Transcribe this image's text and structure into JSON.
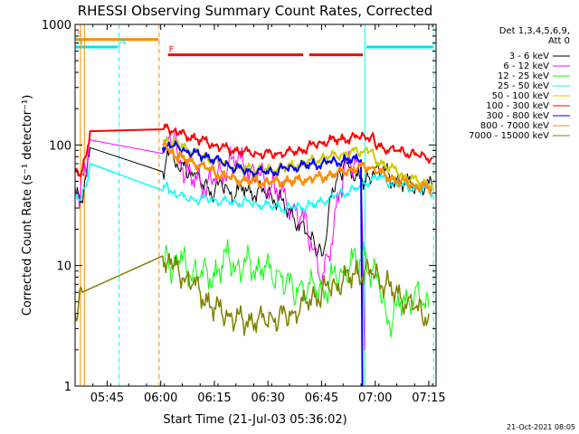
{
  "chart_data": {
    "type": "line",
    "title": "RHESSI Observing Summary Count Rates, Corrected",
    "xlabel": "Start Time (21-Jul-03 05:36:02)",
    "ylabel": "Corrected Count Rate (s⁻¹ detector⁻¹)",
    "y_scale": "log",
    "ylim": [
      1,
      1000
    ],
    "x_unit": "minutes since 05:36:02",
    "xlim": [
      0,
      101
    ],
    "x_ticks": [
      {
        "label": "05:45",
        "x": 8.97
      },
      {
        "label": "06:00",
        "x": 23.97
      },
      {
        "label": "06:15",
        "x": 38.97
      },
      {
        "label": "06:30",
        "x": 53.97
      },
      {
        "label": "06:45",
        "x": 68.97
      },
      {
        "label": "07:00",
        "x": 83.97
      },
      {
        "label": "07:15",
        "x": 98.97
      }
    ],
    "y_ticks": [
      {
        "label": "1",
        "y": 1
      },
      {
        "label": "10",
        "y": 10
      },
      {
        "label": "100",
        "y": 100
      },
      {
        "label": "1000",
        "y": 1000
      }
    ],
    "legend_header": [
      "Det 1,3,4,5,6,9,",
      "Att 0"
    ],
    "legend_placement": "right",
    "series": [
      {
        "name": "3 - 6 keV",
        "color": "#000000",
        "x": [
          0,
          1.5,
          3,
          4.2,
          24.5,
          25.5,
          26.5,
          27.5,
          28.5,
          29.5,
          31,
          33,
          34,
          35,
          37,
          39,
          41,
          43,
          45,
          47,
          49,
          51,
          53,
          55,
          57,
          59,
          61,
          63,
          65,
          67,
          68,
          69,
          70,
          71,
          73,
          74,
          75,
          76,
          77,
          79,
          81,
          82,
          84,
          86,
          88,
          90,
          92,
          94,
          96,
          98,
          100
        ],
        "y": [
          40,
          33,
          55,
          95,
          60,
          75,
          90,
          80,
          70,
          60,
          65,
          55,
          58,
          50,
          45,
          40,
          48,
          42,
          38,
          45,
          40,
          42,
          40,
          38,
          35,
          30,
          25,
          22,
          18,
          15,
          13,
          12,
          15,
          30,
          50,
          60,
          65,
          70,
          65,
          55,
          50,
          55,
          65,
          60,
          55,
          50,
          48,
          47,
          46,
          45,
          45
        ]
      },
      {
        "name": "6 - 12 keV",
        "color": "#ff00ff",
        "x": [
          0,
          1.5,
          3,
          4.2,
          24.5,
          25.5,
          26.5,
          27.5,
          28.5,
          29.5,
          31,
          33,
          35,
          37,
          39,
          41,
          43,
          45,
          47,
          49,
          51,
          53,
          55,
          57,
          59,
          61,
          63,
          65,
          67,
          69,
          71,
          73,
          75,
          77,
          79,
          80,
          81
        ],
        "y": [
          45,
          40,
          60,
          110,
          85,
          100,
          120,
          110,
          90,
          75,
          60,
          52,
          50,
          48,
          50,
          60,
          70,
          75,
          70,
          60,
          55,
          50,
          45,
          40,
          35,
          30,
          25,
          20,
          14,
          7,
          12,
          30,
          55,
          70,
          80,
          60,
          2
        ]
      },
      {
        "name": "12 - 25 keV",
        "color": "#00ff00",
        "x": [
          24.5,
          26,
          27.5,
          29,
          31,
          33,
          35,
          37,
          39,
          41,
          43,
          45,
          47,
          49,
          51,
          53,
          55,
          57,
          59,
          61,
          63,
          65,
          67,
          69,
          71,
          73,
          75,
          77,
          79,
          81,
          83,
          85,
          87,
          89,
          91,
          93,
          95,
          97,
          99
        ],
        "y": [
          10,
          12,
          9,
          11,
          10,
          9,
          8,
          9,
          8,
          10,
          12,
          10,
          9,
          11,
          9,
          10,
          8,
          9,
          7,
          6,
          7,
          6,
          7,
          6,
          7,
          8,
          9,
          10,
          11,
          12,
          9,
          7,
          4,
          3.5,
          5,
          5,
          6,
          5,
          4.5
        ]
      },
      {
        "name": "25 - 50 keV",
        "color": "#00ffff",
        "x": [
          0,
          1.5,
          3,
          4.2,
          24.5,
          26,
          27.5,
          29,
          31,
          33,
          35,
          37,
          39,
          41,
          43,
          45,
          47,
          49,
          51,
          53,
          55,
          57,
          59,
          61,
          63,
          65,
          67,
          69,
          71,
          73,
          75,
          77,
          79,
          81,
          83,
          85,
          87,
          89,
          91,
          93,
          95,
          97,
          99,
          100
        ],
        "y": [
          38,
          35,
          45,
          70,
          42,
          45,
          40,
          38,
          36,
          36,
          35,
          36,
          35,
          34,
          34,
          33,
          34,
          33,
          32,
          32,
          31,
          31,
          30,
          30,
          31,
          31,
          32,
          34,
          36,
          38,
          40,
          42,
          44,
          48,
          52,
          55,
          50,
          48,
          46,
          45,
          44,
          43,
          42,
          40
        ]
      },
      {
        "name": "50 - 100 keV",
        "color": "#cccc00",
        "x": [
          24.5,
          26,
          27.5,
          29,
          31,
          33,
          35,
          37,
          39,
          41,
          43,
          45,
          47,
          49,
          51,
          53,
          55,
          57,
          59,
          61,
          63,
          65,
          67,
          69,
          71,
          73,
          75,
          77,
          79,
          81,
          83,
          84,
          86,
          88,
          90,
          92,
          94,
          96,
          98,
          100
        ],
        "y": [
          110,
          108,
          105,
          100,
          95,
          88,
          82,
          78,
          74,
          70,
          68,
          66,
          64,
          63,
          63,
          62,
          63,
          64,
          65,
          67,
          70,
          72,
          75,
          78,
          80,
          82,
          84,
          86,
          88,
          90,
          92,
          75,
          70,
          65,
          60,
          56,
          52,
          50,
          48,
          47
        ]
      },
      {
        "name": "100 - 300 keV",
        "color": "#ff0000",
        "x": [
          0,
          1.5,
          3,
          4.2,
          24.5,
          26,
          27.5,
          29,
          31,
          33,
          35,
          37,
          39,
          41,
          43,
          45,
          47,
          49,
          51,
          53,
          55,
          57,
          59,
          61,
          63,
          65,
          67,
          69,
          71,
          73,
          75,
          77,
          79,
          81,
          83,
          84,
          86,
          88,
          90,
          92,
          94,
          96,
          98,
          100
        ],
        "y": [
          60,
          55,
          80,
          130,
          135,
          140,
          130,
          125,
          120,
          115,
          110,
          105,
          100,
          95,
          92,
          90,
          88,
          86,
          85,
          84,
          84,
          85,
          86,
          88,
          90,
          95,
          100,
          105,
          108,
          110,
          112,
          114,
          116,
          118,
          120,
          100,
          95,
          92,
          90,
          88,
          85,
          82,
          80,
          78
        ]
      },
      {
        "name": "300 - 800 keV",
        "color": "#0000ff",
        "x": [
          24.5,
          26,
          27.5,
          29,
          31,
          33,
          35,
          37,
          39,
          41,
          43,
          45,
          47,
          49,
          51,
          53,
          55,
          57,
          59,
          61,
          63,
          65,
          67,
          69,
          71,
          73,
          75,
          77,
          79,
          80,
          80.4
        ],
        "y": [
          95,
          100,
          98,
          95,
          90,
          85,
          82,
          80,
          76,
          72,
          68,
          64,
          62,
          60,
          60,
          60,
          60,
          62,
          64,
          65,
          67,
          68,
          69,
          70,
          72,
          73,
          74,
          75,
          76,
          75,
          1
        ]
      },
      {
        "name": "800 - 7000 keV",
        "color": "#ff8c00",
        "x": [
          24.5,
          26,
          27.5,
          29,
          31,
          33,
          35,
          37,
          39,
          41,
          43,
          45,
          47,
          49,
          51,
          53,
          55,
          57,
          59,
          61,
          63,
          65,
          67,
          69,
          71,
          73,
          75,
          77,
          79,
          81,
          83,
          85,
          87,
          89,
          91,
          93,
          95,
          97,
          99,
          100
        ],
        "y": [
          100,
          92,
          85,
          80,
          75,
          72,
          68,
          64,
          60,
          56,
          54,
          52,
          51,
          50,
          50,
          49,
          49,
          50,
          50,
          50,
          51,
          52,
          53,
          54,
          56,
          58,
          60,
          62,
          64,
          66,
          65,
          60,
          55,
          52,
          50,
          48,
          46,
          45,
          44,
          43
        ]
      },
      {
        "name": "7000 - 15000 keV",
        "color": "#808000",
        "x": [
          0,
          1,
          2,
          24.5,
          26,
          27.5,
          29,
          31,
          33,
          35,
          37,
          39,
          41,
          43,
          45,
          47,
          49,
          51,
          53,
          55,
          57,
          59,
          61,
          63,
          65,
          67,
          69,
          71,
          73,
          75,
          77,
          79,
          81,
          83,
          85,
          87,
          89,
          91,
          93,
          95,
          97,
          99
        ],
        "y": [
          4,
          5,
          6,
          12,
          11,
          10,
          9,
          8,
          7,
          6,
          5,
          4.5,
          4,
          4,
          3.5,
          3.5,
          3.5,
          3.5,
          3.5,
          3.8,
          3.6,
          3.8,
          4,
          4.5,
          5,
          5.5,
          6,
          6.5,
          7,
          7.5,
          8,
          8.5,
          9,
          8.5,
          8,
          7,
          6,
          5.5,
          5,
          4.5,
          4,
          4
        ]
      }
    ],
    "flags": [
      {
        "label": "S",
        "color": "#ff8c00",
        "x0": 0.2,
        "x1": 23.3,
        "y": 750
      },
      {
        "label": "N",
        "color": "#00e5ee",
        "x0": 0.2,
        "x1": 12.0,
        "y": 650
      },
      {
        "label": "N",
        "color": "#00e5ee",
        "x0": 12.3,
        "x1": 12.6,
        "y": 650
      },
      {
        "label": "",
        "color": "#00e5ee",
        "x0": 81.5,
        "x1": 100.3,
        "y": 650
      },
      {
        "label": "F",
        "color": "#ff0000",
        "x0": 26.0,
        "x1": 63.8,
        "y": 560
      },
      {
        "label": "",
        "color": "#ff0000",
        "x0": 65.5,
        "x1": 80.5,
        "y": 560
      }
    ],
    "vlines": [
      {
        "x": 1.5,
        "color": "#ff8c00",
        "style": "solid"
      },
      {
        "x": 2.6,
        "color": "#ff8c00",
        "style": "solid"
      },
      {
        "x": 12.3,
        "color": "#00ffff",
        "style": "dashed"
      },
      {
        "x": 23.5,
        "color": "#ff8c00",
        "style": "dashed"
      },
      {
        "x": 81.1,
        "color": "#00ffff",
        "style": "solid"
      },
      {
        "x": 100.3,
        "color": "#00ffff",
        "style": "dashed"
      }
    ]
  },
  "footer": {
    "timestamp": "21-Oct-2021 08:05"
  }
}
